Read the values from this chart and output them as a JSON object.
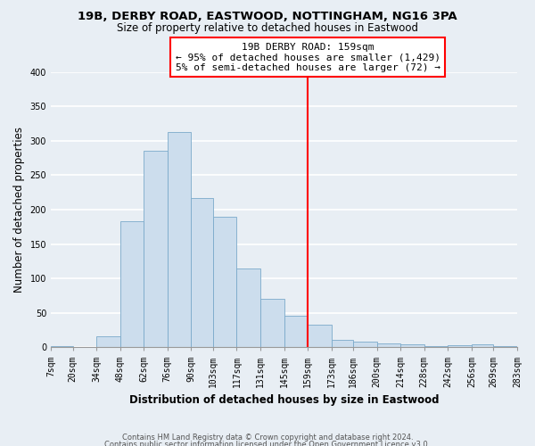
{
  "title1": "19B, DERBY ROAD, EASTWOOD, NOTTINGHAM, NG16 3PA",
  "title2": "Size of property relative to detached houses in Eastwood",
  "xlabel": "Distribution of detached houses by size in Eastwood",
  "ylabel": "Number of detached properties",
  "footnote1": "Contains HM Land Registry data © Crown copyright and database right 2024.",
  "footnote2": "Contains public sector information licensed under the Open Government Licence v3.0.",
  "bin_edges": [
    7,
    20,
    34,
    48,
    62,
    76,
    90,
    103,
    117,
    131,
    145,
    159,
    173,
    186,
    200,
    214,
    228,
    242,
    256,
    269,
    283
  ],
  "bin_labels": [
    "7sqm",
    "20sqm",
    "34sqm",
    "48sqm",
    "62sqm",
    "76sqm",
    "90sqm",
    "103sqm",
    "117sqm",
    "131sqm",
    "145sqm",
    "159sqm",
    "173sqm",
    "186sqm",
    "200sqm",
    "214sqm",
    "228sqm",
    "242sqm",
    "256sqm",
    "269sqm",
    "283sqm"
  ],
  "bar_heights": [
    2,
    0,
    16,
    183,
    285,
    313,
    217,
    190,
    115,
    70,
    46,
    33,
    11,
    8,
    6,
    5,
    2,
    3,
    5,
    2
  ],
  "bar_color": "#ccdded",
  "bar_edge_color": "#7baaca",
  "vline_x": 159,
  "vline_color": "red",
  "annotation_title": "19B DERBY ROAD: 159sqm",
  "annotation_line1": "← 95% of detached houses are smaller (1,429)",
  "annotation_line2": "5% of semi-detached houses are larger (72) →",
  "ylim": [
    0,
    400
  ],
  "yticks": [
    0,
    50,
    100,
    150,
    200,
    250,
    300,
    350,
    400
  ],
  "bg_color": "#e8eef4",
  "plot_bg_color": "#e8eef4",
  "grid_color": "#ffffff",
  "title_fontsize": 9.5,
  "subtitle_fontsize": 8.5,
  "axis_label_fontsize": 8.5,
  "tick_fontsize": 7,
  "annotation_fontsize": 8,
  "footnote_fontsize": 6
}
